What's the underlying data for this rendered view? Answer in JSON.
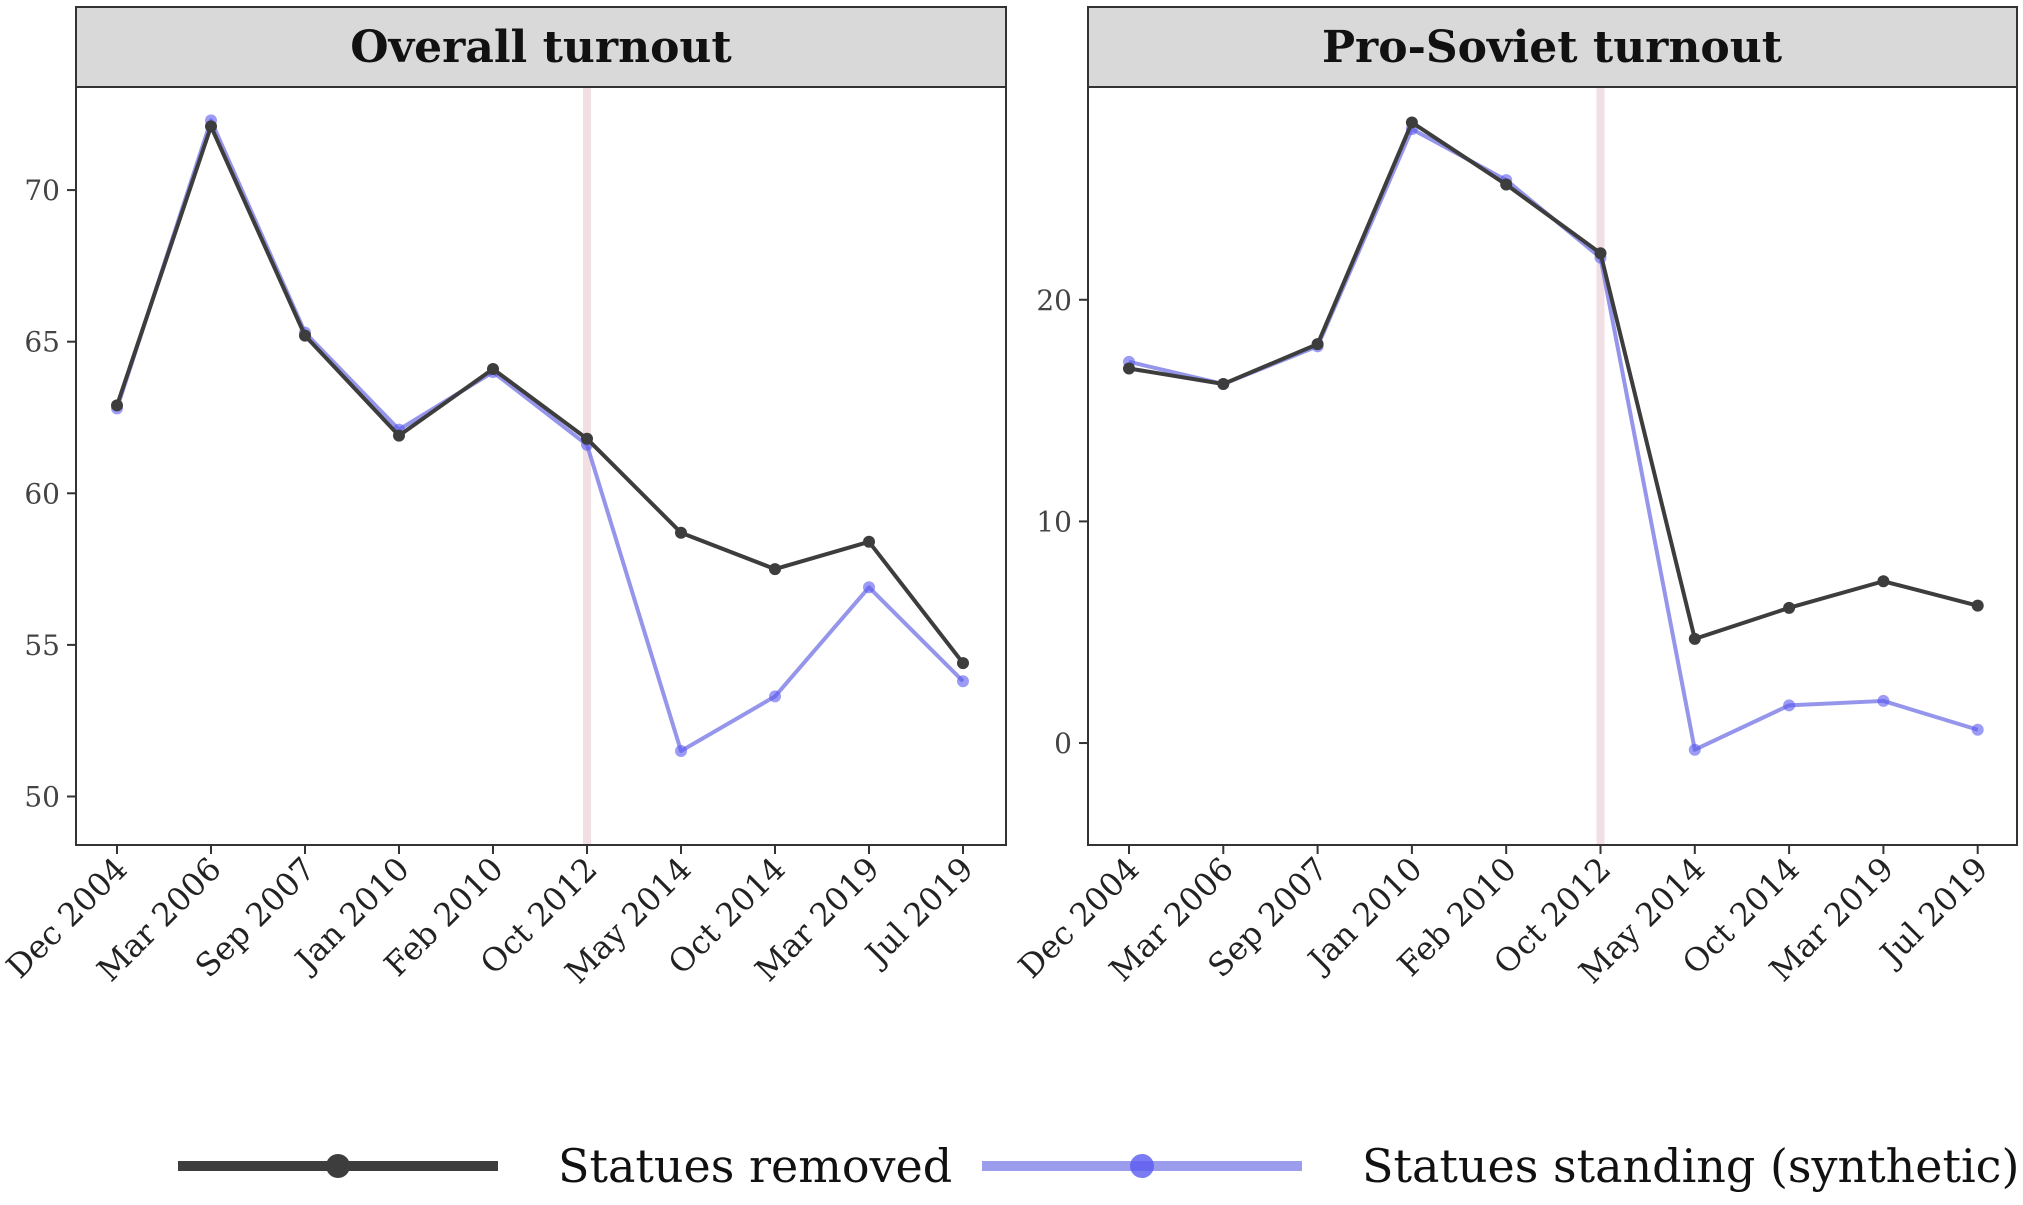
{
  "chart_data": [
    {
      "type": "line",
      "title": "Overall turnout",
      "categories": [
        "Dec 2004",
        "Mar 2006",
        "Sep 2007",
        "Jan 2010",
        "Feb 2010",
        "Oct 2012",
        "May 2014",
        "Oct 2014",
        "Mar 2019",
        "Jul 2019"
      ],
      "yticks": [
        50,
        55,
        60,
        65,
        70
      ],
      "ylim": [
        48.4,
        73.4
      ],
      "vline_category": "Oct 2012",
      "series": [
        {
          "name": "Statues removed",
          "color": "#3d3d3d",
          "values": [
            62.9,
            72.1,
            65.2,
            61.9,
            64.1,
            61.8,
            58.7,
            57.5,
            58.4,
            54.4
          ]
        },
        {
          "name": "Statues standing (synthetic)",
          "color": "#7b7be6",
          "values": [
            62.8,
            72.3,
            65.3,
            62.1,
            64.0,
            61.6,
            51.5,
            53.3,
            56.9,
            53.8
          ]
        }
      ]
    },
    {
      "type": "line",
      "title": "Pro-Soviet turnout",
      "categories": [
        "Dec 2004",
        "Mar 2006",
        "Sep 2007",
        "Jan 2010",
        "Feb 2010",
        "Oct 2012",
        "May 2014",
        "Oct 2014",
        "Mar 2019",
        "Jul 2019"
      ],
      "yticks": [
        0,
        10,
        20
      ],
      "ylim": [
        -4.6,
        29.6
      ],
      "vline_category": "Oct 2012",
      "series": [
        {
          "name": "Statues removed",
          "color": "#3d3d3d",
          "values": [
            16.9,
            16.2,
            18.0,
            28.0,
            25.2,
            22.1,
            4.7,
            6.1,
            7.3,
            6.2
          ]
        },
        {
          "name": "Statues standing (synthetic)",
          "color": "#7b7be6",
          "values": [
            17.2,
            16.2,
            17.9,
            27.7,
            25.4,
            21.9,
            -0.3,
            1.7,
            1.9,
            0.6
          ]
        }
      ]
    }
  ],
  "legend": {
    "items": [
      {
        "label": "Statues removed",
        "color": "#3d3d3d"
      },
      {
        "label": "Statues standing (synthetic)",
        "color": "#7b7be6"
      }
    ]
  }
}
